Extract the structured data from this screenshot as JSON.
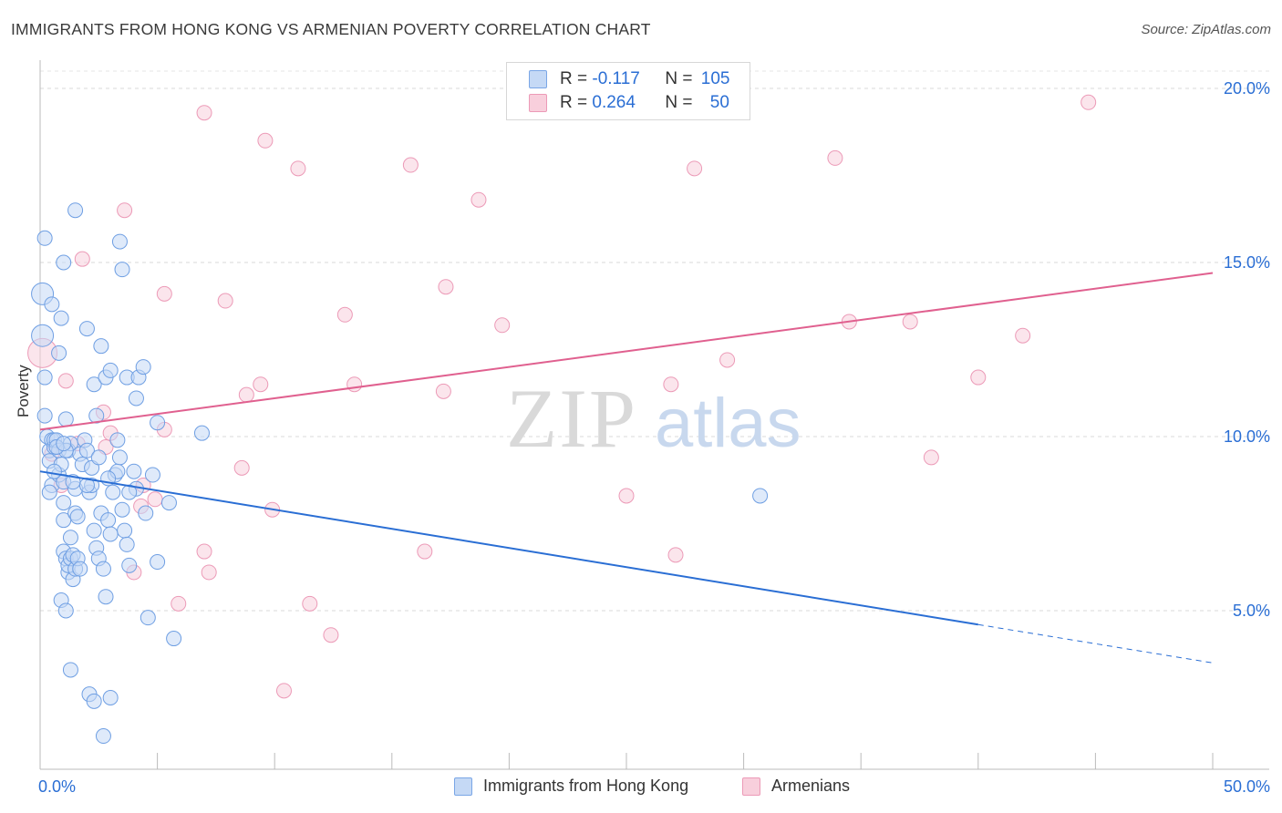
{
  "title": "IMMIGRANTS FROM HONG KONG VS ARMENIAN POVERTY CORRELATION CHART",
  "source": "Source: ZipAtlas.com",
  "watermark": {
    "zip": "ZIP",
    "atlas": "atlas"
  },
  "legend": {
    "series1": {
      "r_label": "R = ",
      "r_value": "-0.117",
      "n_label": "N = ",
      "n_value": "105"
    },
    "series2": {
      "r_label": "R = ",
      "r_value": "0.264",
      "n_label": "N = ",
      "n_value": "50"
    }
  },
  "bottom_legend": {
    "series1": "Immigrants from Hong Kong",
    "series2": "Armenians"
  },
  "colors": {
    "blue": "#2a6ed4",
    "blue_fill": "#c5d9f5",
    "pink": "#e0608f",
    "pink_fill": "#f8cfdc",
    "axis_text": "#2a6ed4",
    "grid": "#d8d8d8"
  },
  "chart_data": {
    "type": "scatter",
    "title": "IMMIGRANTS FROM HONG KONG VS ARMENIAN POVERTY CORRELATION CHART",
    "xlabel": "",
    "ylabel": "Poverty",
    "xlim": [
      0,
      50
    ],
    "ylim": [
      0,
      21
    ],
    "x_tick_labels": [
      "0.0%",
      "50.0%"
    ],
    "y_ticks": [
      5,
      10,
      15,
      20
    ],
    "y_tick_labels": [
      "5.0%",
      "10.0%",
      "15.0%",
      "20.0%"
    ],
    "series": [
      {
        "name": "Immigrants from Hong Kong",
        "color": "#2a6ed4",
        "trend": {
          "x0": 0,
          "y0": 9.0,
          "x1": 40,
          "y1": 4.6,
          "dash_x1": 50,
          "dash_y1": 3.5
        },
        "points": [
          [
            0.1,
            14.1
          ],
          [
            0.1,
            12.9
          ],
          [
            0.2,
            11.7
          ],
          [
            0.2,
            10.6
          ],
          [
            0.3,
            10.0
          ],
          [
            0.4,
            9.6
          ],
          [
            0.4,
            9.3
          ],
          [
            0.5,
            8.6
          ],
          [
            0.4,
            8.4
          ],
          [
            0.5,
            9.9
          ],
          [
            0.6,
            9.7
          ],
          [
            0.6,
            9.9
          ],
          [
            0.7,
            9.9
          ],
          [
            0.8,
            9.6
          ],
          [
            0.8,
            8.9
          ],
          [
            0.9,
            9.2
          ],
          [
            1.0,
            8.7
          ],
          [
            1.0,
            8.1
          ],
          [
            1.0,
            7.6
          ],
          [
            1.0,
            6.7
          ],
          [
            1.1,
            6.5
          ],
          [
            1.2,
            6.1
          ],
          [
            1.2,
            6.3
          ],
          [
            1.3,
            6.5
          ],
          [
            1.3,
            7.1
          ],
          [
            1.4,
            5.9
          ],
          [
            1.4,
            6.6
          ],
          [
            1.5,
            6.2
          ],
          [
            1.6,
            6.5
          ],
          [
            1.7,
            6.2
          ],
          [
            1.1,
            10.5
          ],
          [
            1.2,
            9.6
          ],
          [
            1.3,
            9.8
          ],
          [
            1.5,
            8.5
          ],
          [
            1.5,
            7.8
          ],
          [
            1.6,
            7.7
          ],
          [
            1.7,
            9.5
          ],
          [
            1.8,
            9.2
          ],
          [
            1.9,
            9.9
          ],
          [
            2.0,
            9.6
          ],
          [
            2.1,
            8.4
          ],
          [
            2.2,
            8.6
          ],
          [
            2.3,
            7.3
          ],
          [
            2.4,
            6.8
          ],
          [
            2.5,
            6.5
          ],
          [
            2.6,
            7.8
          ],
          [
            2.7,
            6.2
          ],
          [
            2.8,
            5.4
          ],
          [
            2.9,
            7.6
          ],
          [
            3.0,
            7.2
          ],
          [
            3.1,
            8.4
          ],
          [
            3.2,
            8.9
          ],
          [
            3.3,
            9.0
          ],
          [
            3.4,
            9.4
          ],
          [
            3.5,
            7.9
          ],
          [
            3.6,
            7.3
          ],
          [
            3.7,
            6.9
          ],
          [
            3.8,
            6.3
          ],
          [
            4.0,
            9.0
          ],
          [
            4.1,
            8.5
          ],
          [
            0.2,
            15.7
          ],
          [
            0.5,
            13.8
          ],
          [
            0.8,
            12.4
          ],
          [
            1.0,
            15.0
          ],
          [
            1.5,
            16.5
          ],
          [
            2.0,
            13.1
          ],
          [
            2.3,
            11.5
          ],
          [
            2.4,
            10.6
          ],
          [
            2.6,
            12.6
          ],
          [
            2.8,
            11.7
          ],
          [
            3.0,
            11.9
          ],
          [
            3.4,
            15.6
          ],
          [
            3.5,
            14.8
          ],
          [
            3.7,
            11.7
          ],
          [
            4.1,
            11.1
          ],
          [
            4.2,
            11.7
          ],
          [
            4.4,
            12.0
          ],
          [
            5.0,
            10.4
          ],
          [
            0.9,
            13.4
          ],
          [
            1.1,
            9.6
          ],
          [
            0.9,
            5.3
          ],
          [
            1.1,
            5.0
          ],
          [
            1.3,
            3.3
          ],
          [
            2.1,
            2.6
          ],
          [
            2.3,
            2.4
          ],
          [
            2.7,
            1.4
          ],
          [
            3.0,
            2.5
          ],
          [
            4.6,
            4.8
          ],
          [
            5.0,
            6.4
          ],
          [
            5.5,
            8.1
          ],
          [
            0.6,
            9.0
          ],
          [
            0.7,
            9.7
          ],
          [
            1.0,
            9.8
          ],
          [
            1.4,
            8.7
          ],
          [
            2.0,
            8.6
          ],
          [
            2.2,
            9.1
          ],
          [
            2.5,
            9.4
          ],
          [
            2.9,
            8.8
          ],
          [
            3.3,
            9.9
          ],
          [
            3.8,
            8.4
          ],
          [
            4.5,
            7.8
          ],
          [
            4.8,
            8.9
          ],
          [
            5.7,
            4.2
          ],
          [
            6.9,
            10.1
          ],
          [
            30.7,
            8.3
          ]
        ]
      },
      {
        "name": "Armenians",
        "color": "#e0608f",
        "trend": {
          "x0": 0,
          "y0": 10.2,
          "x1": 50,
          "y1": 14.7
        },
        "points": [
          [
            0.1,
            12.4
          ],
          [
            0.5,
            9.5
          ],
          [
            0.9,
            8.6
          ],
          [
            1.1,
            11.6
          ],
          [
            1.6,
            9.8
          ],
          [
            1.8,
            15.1
          ],
          [
            2.7,
            10.7
          ],
          [
            2.8,
            9.7
          ],
          [
            3.0,
            10.1
          ],
          [
            3.6,
            16.5
          ],
          [
            4.0,
            6.1
          ],
          [
            4.3,
            8.0
          ],
          [
            4.4,
            8.6
          ],
          [
            4.9,
            8.2
          ],
          [
            5.3,
            10.2
          ],
          [
            5.3,
            14.1
          ],
          [
            5.9,
            5.2
          ],
          [
            7.0,
            19.3
          ],
          [
            7.0,
            6.7
          ],
          [
            7.2,
            6.1
          ],
          [
            7.9,
            13.9
          ],
          [
            8.6,
            9.1
          ],
          [
            8.8,
            11.2
          ],
          [
            9.4,
            11.5
          ],
          [
            9.6,
            18.5
          ],
          [
            9.9,
            7.9
          ],
          [
            10.4,
            2.7
          ],
          [
            11.0,
            17.7
          ],
          [
            11.5,
            5.2
          ],
          [
            12.4,
            4.3
          ],
          [
            13.0,
            13.5
          ],
          [
            13.4,
            11.5
          ],
          [
            15.8,
            17.8
          ],
          [
            16.4,
            6.7
          ],
          [
            17.2,
            11.3
          ],
          [
            17.3,
            14.3
          ],
          [
            18.7,
            16.8
          ],
          [
            19.7,
            13.2
          ],
          [
            25.0,
            8.3
          ],
          [
            26.9,
            11.5
          ],
          [
            27.1,
            6.6
          ],
          [
            27.9,
            17.7
          ],
          [
            29.3,
            12.2
          ],
          [
            33.9,
            18.0
          ],
          [
            34.5,
            13.3
          ],
          [
            37.1,
            13.3
          ],
          [
            38.0,
            9.4
          ],
          [
            40.0,
            11.7
          ],
          [
            41.9,
            12.9
          ],
          [
            44.7,
            19.6
          ]
        ]
      }
    ]
  }
}
